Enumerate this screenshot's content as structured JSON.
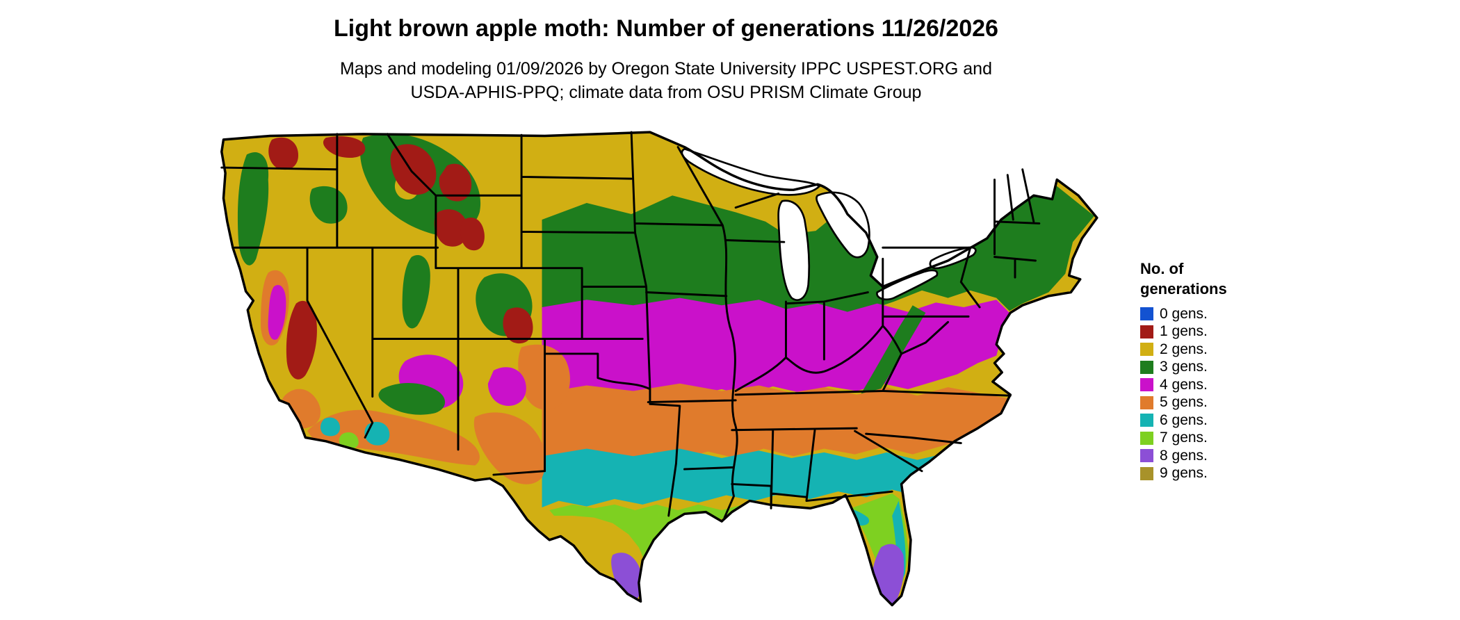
{
  "title": "Light brown apple moth: Number of generations 11/26/2026",
  "subtitle": {
    "line1": "Maps and modeling 01/09/2026 by Oregon State University IPPC USPEST.ORG and",
    "line2": "USDA-APHIS-PPQ; climate data from OSU PRISM Climate Group"
  },
  "legend": {
    "title_line1": "No. of",
    "title_line2": "generations",
    "items": [
      {
        "label": "0 gens.",
        "color": "#1352d1"
      },
      {
        "label": "1 gens.",
        "color": "#a21b16"
      },
      {
        "label": "2 gens.",
        "color": "#d1af13"
      },
      {
        "label": "3 gens.",
        "color": "#1e7d1e"
      },
      {
        "label": "4 gens.",
        "color": "#ca11ca"
      },
      {
        "label": "5 gens.",
        "color": "#e07b2c"
      },
      {
        "label": "6 gens.",
        "color": "#15b3b3"
      },
      {
        "label": "7 gens.",
        "color": "#7ed021"
      },
      {
        "label": "8 gens.",
        "color": "#8c4fd6"
      },
      {
        "label": "9 gens.",
        "color": "#a8922a"
      }
    ]
  },
  "map": {
    "region": "Contiguous United States",
    "border_color": "#000000",
    "water_color": "#ffffff"
  }
}
